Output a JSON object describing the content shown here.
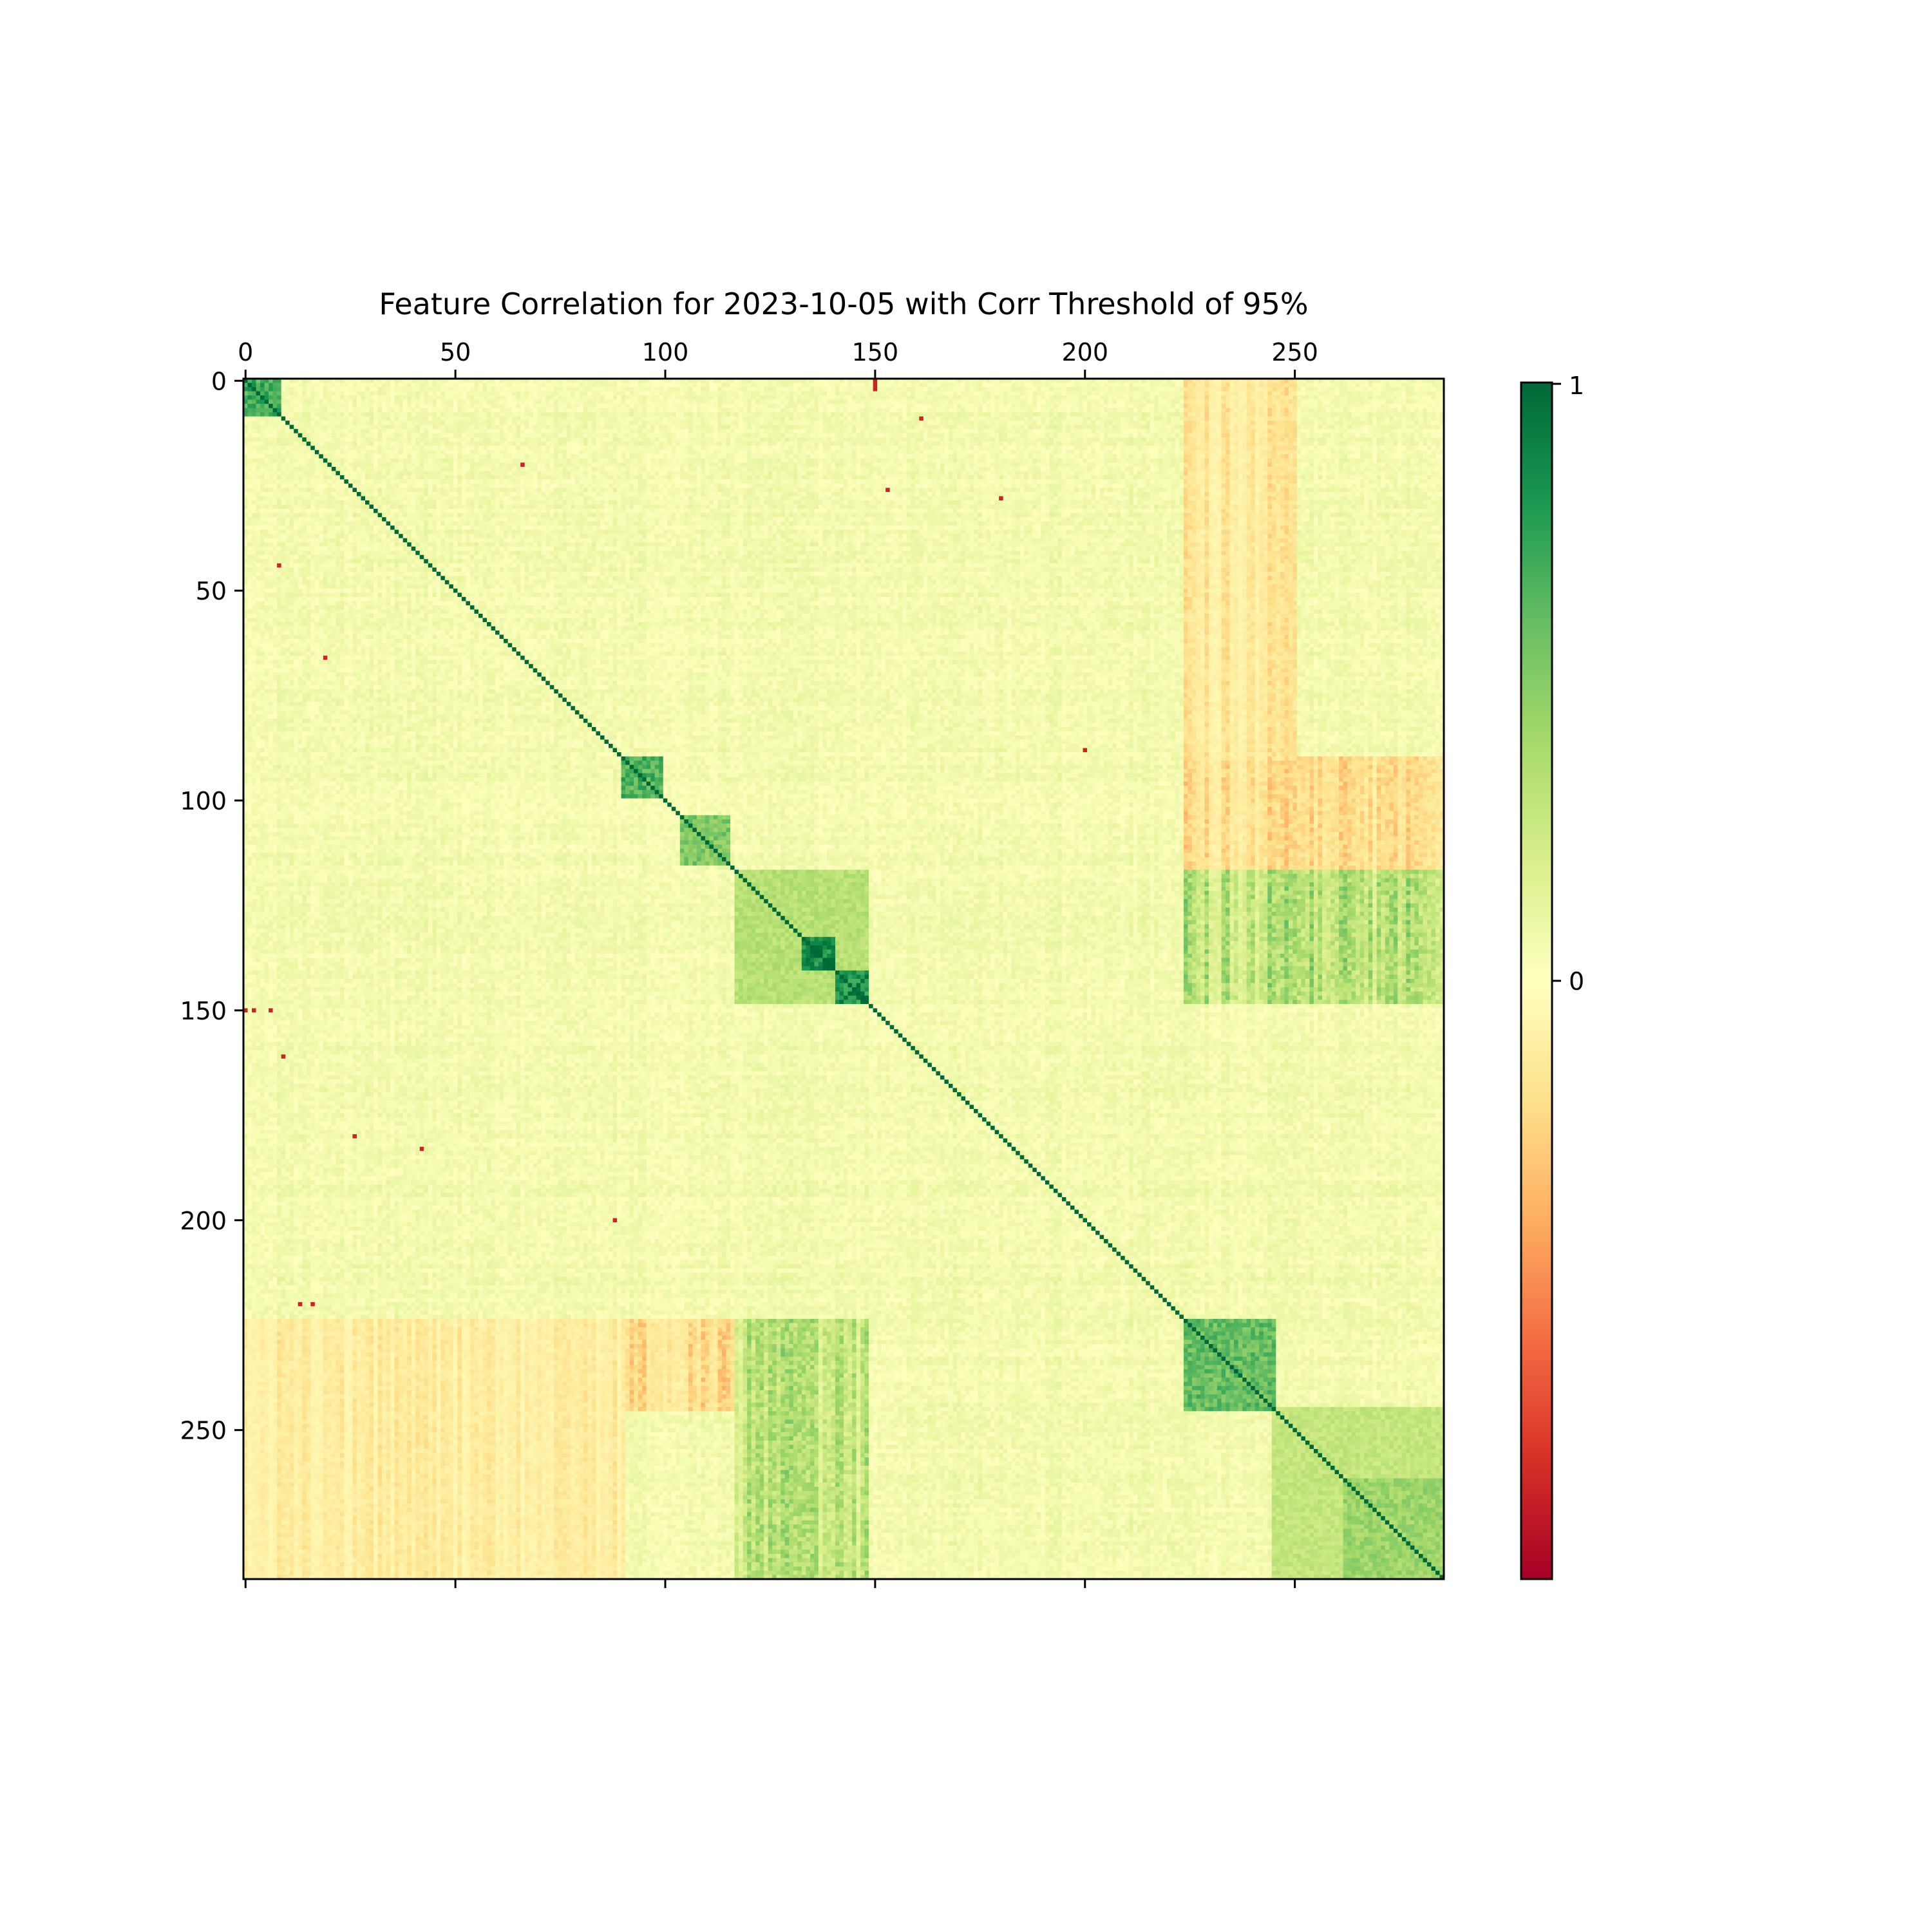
{
  "chart_data": {
    "type": "heatmap",
    "title": "Feature Correlation for 2023-10-05 with Corr Threshold of 95%",
    "matrix_size": 286,
    "x_ticks": [
      0,
      50,
      100,
      150,
      200,
      250
    ],
    "y_ticks": [
      0,
      50,
      100,
      150,
      200,
      250
    ],
    "x_tick_labels": [
      "0",
      "50",
      "100",
      "150",
      "200",
      "250"
    ],
    "y_tick_labels": [
      "0",
      "50",
      "100",
      "150",
      "200",
      "250"
    ],
    "x_axis_position": "top",
    "colorbar": {
      "label_top": "1",
      "label_mid": "0",
      "colormap": "RdYlGn",
      "range": [
        -1,
        1
      ],
      "colors": [
        "#a50026",
        "#d73027",
        "#f46d43",
        "#fdae61",
        "#fee08b",
        "#ffffbf",
        "#d9ef8b",
        "#a6d96a",
        "#66bd63",
        "#1a9850",
        "#006837"
      ]
    },
    "diagonal_value": 1,
    "positive_blocks": [
      {
        "range": [
          0,
          8
        ],
        "value": 0.72
      },
      {
        "range": [
          90,
          99
        ],
        "value": 0.7
      },
      {
        "range": [
          104,
          115
        ],
        "value": 0.55
      },
      {
        "range": [
          117,
          148
        ],
        "value": 0.35
      },
      {
        "range": [
          133,
          140
        ],
        "value": 0.93
      },
      {
        "range": [
          141,
          148
        ],
        "value": 0.88
      },
      {
        "range": [
          224,
          245
        ],
        "value": 0.62
      },
      {
        "range": [
          245,
          285
        ],
        "value": 0.3
      },
      {
        "range": [
          262,
          285
        ],
        "value": 0.45
      }
    ],
    "cross_blocks": [
      {
        "rows": [
          117,
          148
        ],
        "cols": [
          224,
          285
        ],
        "value": 0.32
      },
      {
        "rows": [
          224,
          285
        ],
        "cols": [
          117,
          148
        ],
        "value": 0.3
      },
      {
        "rows": [
          224,
          245
        ],
        "cols": [
          90,
          116
        ],
        "value": -0.22
      },
      {
        "rows": [
          90,
          116
        ],
        "cols": [
          224,
          285
        ],
        "value": -0.2
      },
      {
        "rows": [
          0,
          90
        ],
        "cols": [
          224,
          250
        ],
        "value": -0.15
      },
      {
        "rows": [
          224,
          285
        ],
        "cols": [
          0,
          90
        ],
        "value": -0.12
      }
    ],
    "strong_negative_cells": [
      [
        0,
        150
      ],
      [
        1,
        150
      ],
      [
        2,
        150
      ],
      [
        9,
        161
      ],
      [
        26,
        153
      ],
      [
        28,
        180
      ],
      [
        44,
        8
      ],
      [
        66,
        19
      ],
      [
        20,
        66
      ],
      [
        88,
        200
      ],
      [
        150,
        0
      ],
      [
        150,
        2
      ],
      [
        150,
        6
      ],
      [
        161,
        9
      ],
      [
        180,
        26
      ],
      [
        183,
        42
      ],
      [
        200,
        88
      ],
      [
        220,
        13
      ],
      [
        220,
        16
      ]
    ]
  }
}
